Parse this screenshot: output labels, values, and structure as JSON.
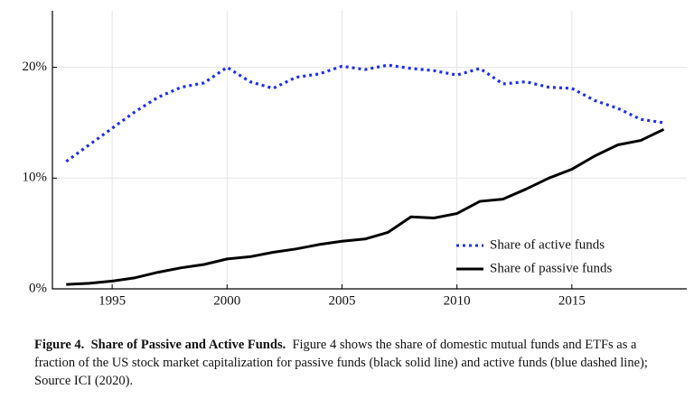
{
  "chart_data": {
    "type": "line",
    "x": [
      1993,
      1994,
      1995,
      1996,
      1997,
      1998,
      1999,
      2000,
      2001,
      2002,
      2003,
      2004,
      2005,
      2006,
      2007,
      2008,
      2009,
      2010,
      2011,
      2012,
      2013,
      2014,
      2015,
      2016,
      2017,
      2018,
      2019
    ],
    "series": [
      {
        "name": "Share of active funds",
        "color": "#1f2ff0",
        "style": "dotted",
        "values": [
          11.5,
          13,
          14.5,
          16,
          17.3,
          18.2,
          18.6,
          20,
          18.7,
          18.1,
          19.1,
          19.4,
          20.1,
          19.8,
          20.2,
          19.9,
          19.7,
          19.3,
          19.9,
          18.5,
          18.7,
          18.2,
          18.1,
          17,
          16.3,
          15.3,
          15
        ]
      },
      {
        "name": "Share of passive funds",
        "color": "#000000",
        "style": "solid",
        "values": [
          0.4,
          0.5,
          0.7,
          1.0,
          1.5,
          1.9,
          2.2,
          2.7,
          2.9,
          3.3,
          3.6,
          4.0,
          4.3,
          4.5,
          5.1,
          6.5,
          6.4,
          6.8,
          7.9,
          8.1,
          9.0,
          10.0,
          10.8,
          12.0,
          13.0,
          13.4,
          14.4
        ]
      }
    ],
    "xlim": [
      1992.4,
      2020
    ],
    "xticks": [
      1995,
      2000,
      2005,
      2010,
      2015
    ],
    "ylim": [
      0,
      25.1
    ],
    "yticks": [
      {
        "value": 0,
        "label": "0%"
      },
      {
        "value": 10,
        "label": "10%"
      },
      {
        "value": 20,
        "label": "20%"
      }
    ],
    "grid": true,
    "legend": "lower right"
  },
  "caption": {
    "label": "Figure 4.",
    "title": "Share of Passive and Active Funds.",
    "text": "Figure 4 shows the share of domestic mutual funds and ETFs as a fraction of the US stock market capitalization for passive funds (black solid line) and active funds (blue dashed line); Source ICI (2020)."
  }
}
